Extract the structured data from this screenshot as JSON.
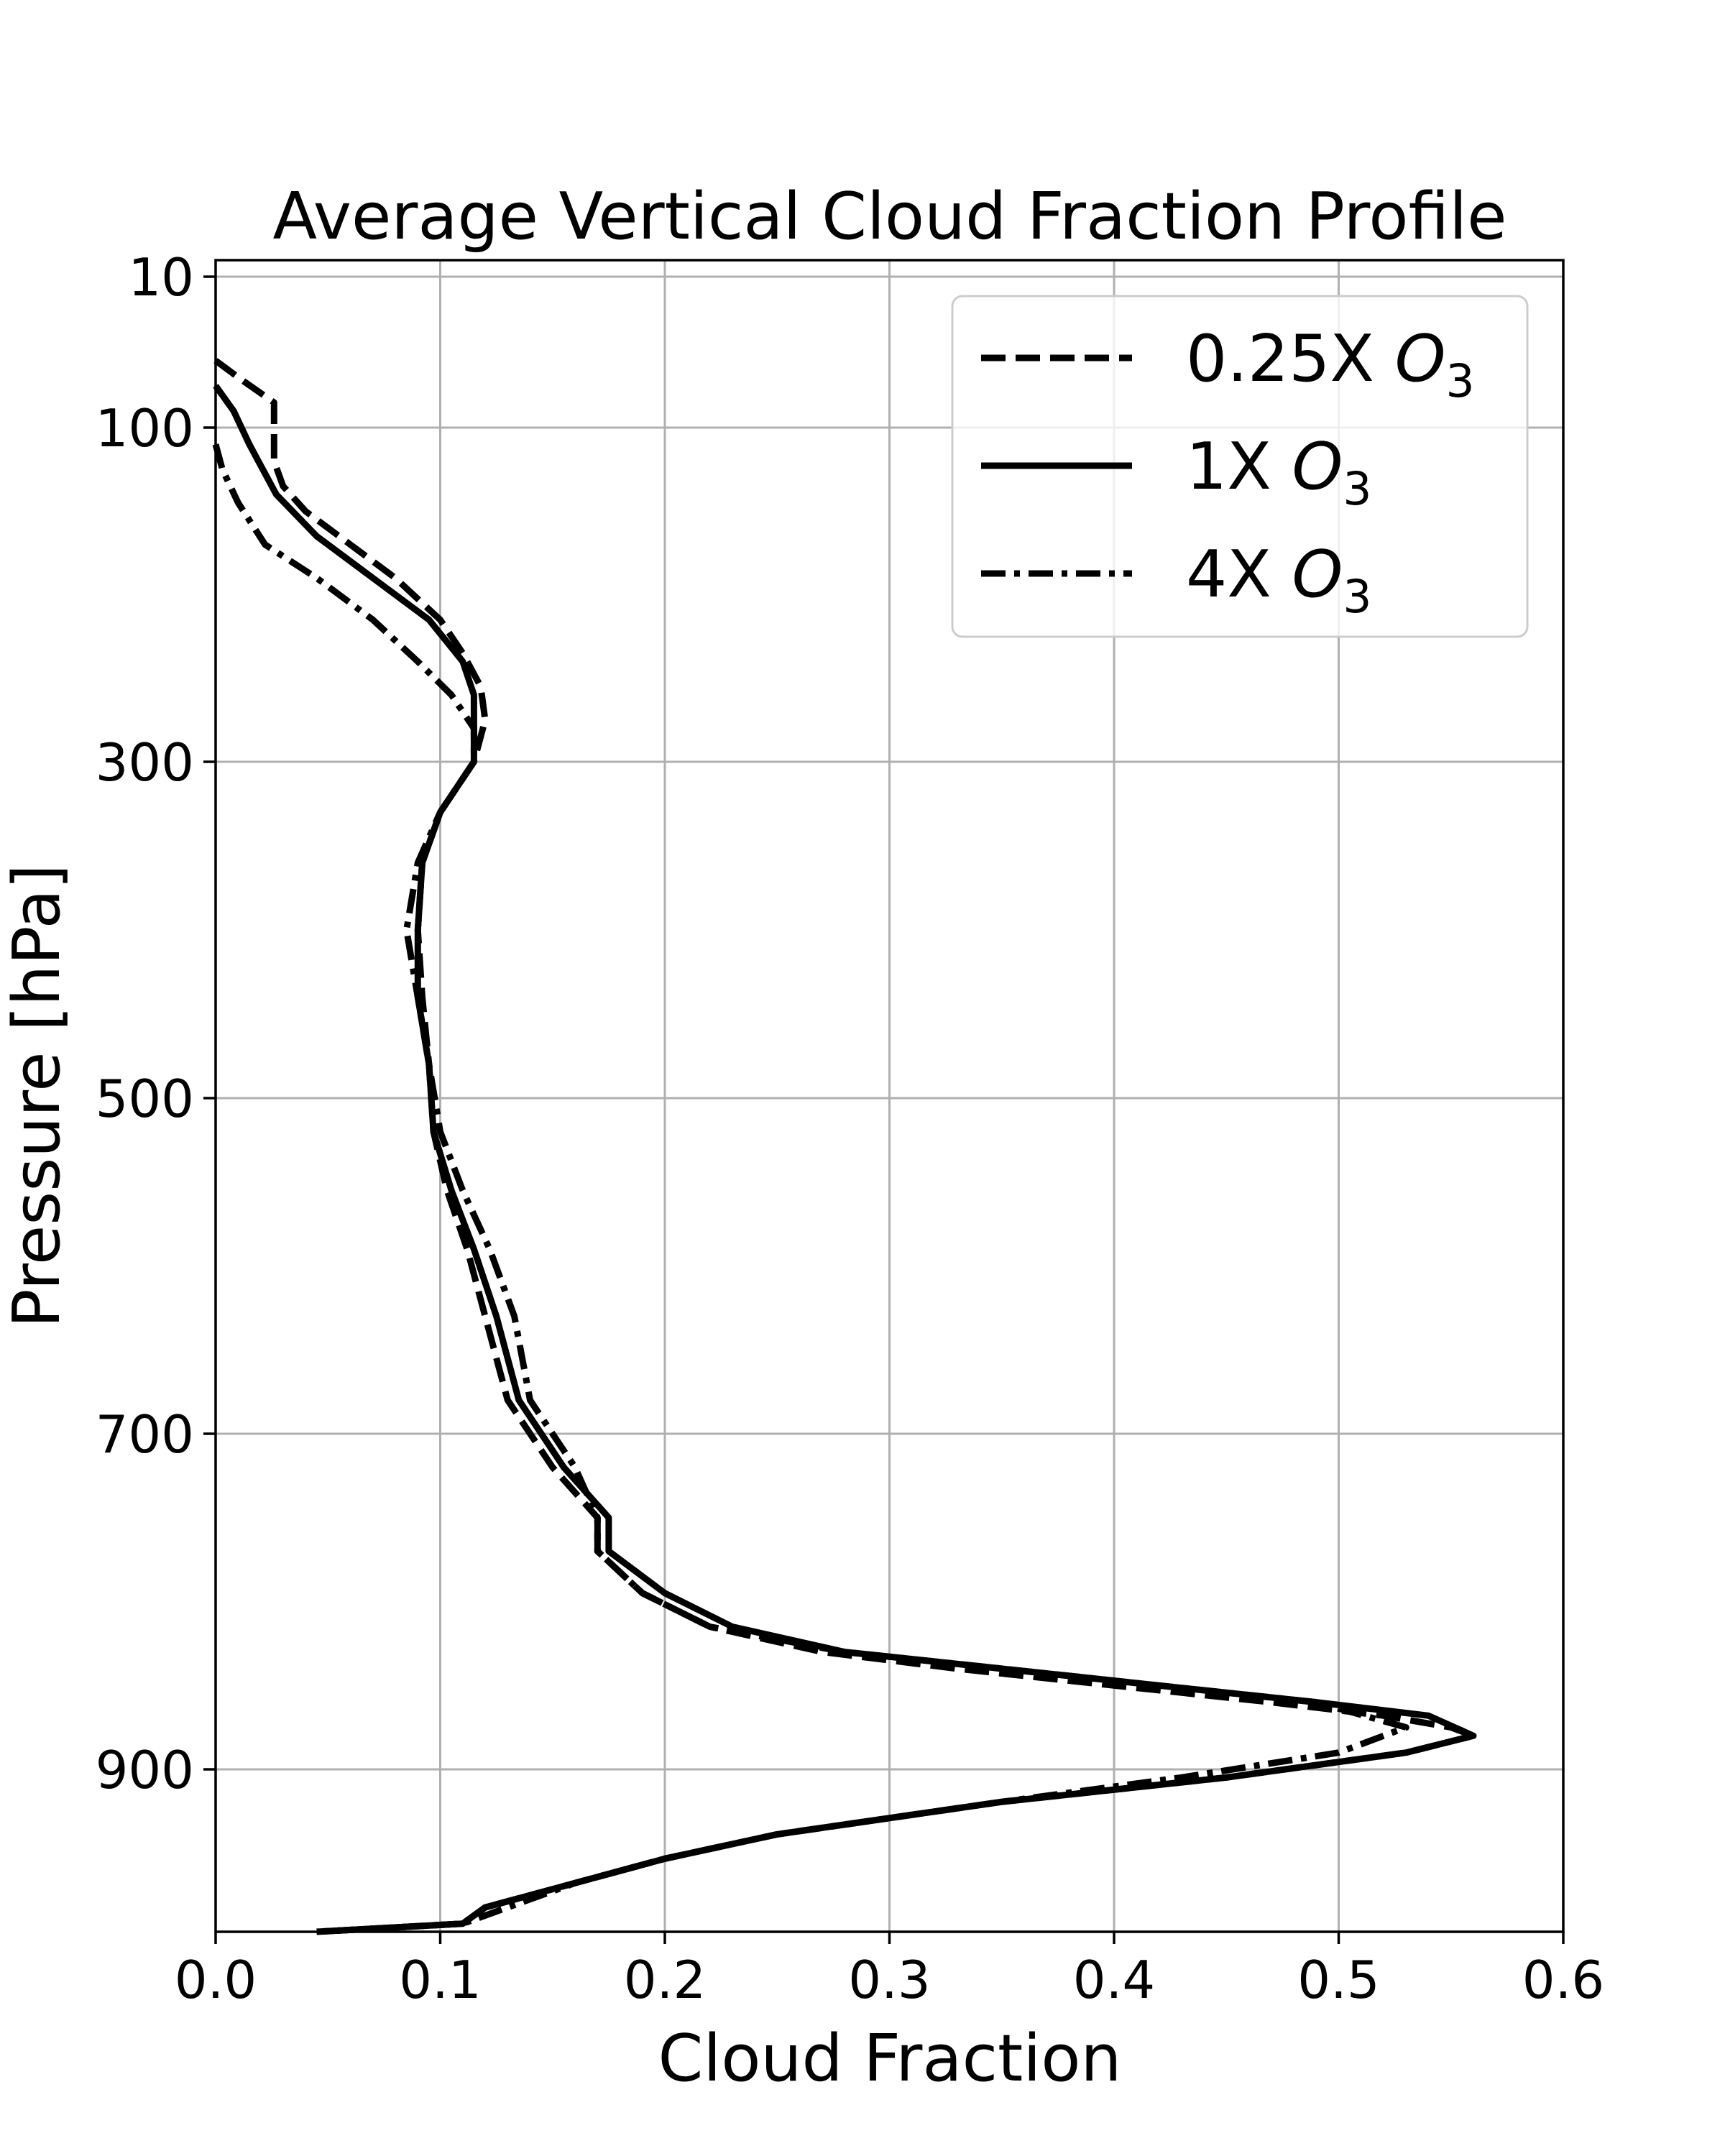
{
  "chart_data": {
    "type": "line",
    "title": "Average Vertical Cloud Fraction Profile",
    "xlabel": "Cloud Fraction",
    "ylabel": "Pressure [hPa]",
    "xlim": [
      0.0,
      0.6
    ],
    "ylim": [
      1000,
      10
    ],
    "x_ticks": [
      "0.0",
      "0.1",
      "0.2",
      "0.3",
      "0.4",
      "0.5",
      "0.6"
    ],
    "y_ticks": [
      "10",
      "100",
      "300",
      "500",
      "700",
      "900"
    ],
    "grid": true,
    "legend_position": "top-right",
    "series": [
      {
        "name": "0.25X",
        "name_italic": "O",
        "name_sub": "3",
        "dash": "dashed",
        "points": [
          [
            0.0,
            60
          ],
          [
            0.01,
            70
          ],
          [
            0.026,
            85
          ],
          [
            0.026,
            100
          ],
          [
            0.026,
            120
          ],
          [
            0.03,
            135
          ],
          [
            0.04,
            150
          ],
          [
            0.06,
            170
          ],
          [
            0.08,
            190
          ],
          [
            0.1,
            215
          ],
          [
            0.11,
            235
          ],
          [
            0.118,
            255
          ],
          [
            0.12,
            275
          ],
          [
            0.115,
            300
          ],
          [
            0.1,
            330
          ],
          [
            0.092,
            360
          ],
          [
            0.09,
            400
          ],
          [
            0.092,
            440
          ],
          [
            0.095,
            480
          ],
          [
            0.097,
            520
          ],
          [
            0.103,
            555
          ],
          [
            0.112,
            590
          ],
          [
            0.12,
            630
          ],
          [
            0.13,
            680
          ],
          [
            0.15,
            720
          ],
          [
            0.17,
            750
          ],
          [
            0.17,
            770
          ],
          [
            0.19,
            795
          ],
          [
            0.22,
            815
          ],
          [
            0.27,
            830
          ],
          [
            0.33,
            840
          ],
          [
            0.4,
            850
          ],
          [
            0.47,
            860
          ],
          [
            0.52,
            868
          ],
          [
            0.55,
            875
          ],
          [
            0.56,
            880
          ],
          [
            0.53,
            890
          ],
          [
            0.45,
            905
          ],
          [
            0.35,
            920
          ],
          [
            0.25,
            940
          ],
          [
            0.2,
            955
          ],
          [
            0.16,
            970
          ],
          [
            0.12,
            985
          ],
          [
            0.11,
            995
          ],
          [
            0.045,
            1000
          ]
        ]
      },
      {
        "name": "1X",
        "name_italic": "O",
        "name_sub": "3",
        "dash": "solid",
        "points": [
          [
            0.0,
            75
          ],
          [
            0.008,
            90
          ],
          [
            0.015,
            110
          ],
          [
            0.027,
            140
          ],
          [
            0.045,
            165
          ],
          [
            0.07,
            190
          ],
          [
            0.095,
            215
          ],
          [
            0.11,
            240
          ],
          [
            0.115,
            260
          ],
          [
            0.115,
            280
          ],
          [
            0.115,
            300
          ],
          [
            0.1,
            330
          ],
          [
            0.092,
            360
          ],
          [
            0.09,
            400
          ],
          [
            0.09,
            440
          ],
          [
            0.095,
            480
          ],
          [
            0.097,
            520
          ],
          [
            0.105,
            555
          ],
          [
            0.115,
            590
          ],
          [
            0.125,
            630
          ],
          [
            0.135,
            680
          ],
          [
            0.155,
            720
          ],
          [
            0.175,
            750
          ],
          [
            0.175,
            770
          ],
          [
            0.2,
            795
          ],
          [
            0.23,
            815
          ],
          [
            0.28,
            830
          ],
          [
            0.35,
            840
          ],
          [
            0.42,
            850
          ],
          [
            0.49,
            860
          ],
          [
            0.54,
            868
          ],
          [
            0.56,
            880
          ],
          [
            0.53,
            890
          ],
          [
            0.45,
            905
          ],
          [
            0.35,
            920
          ],
          [
            0.25,
            940
          ],
          [
            0.2,
            955
          ],
          [
            0.16,
            970
          ],
          [
            0.12,
            985
          ],
          [
            0.11,
            995
          ],
          [
            0.045,
            1000
          ]
        ]
      },
      {
        "name": "4X",
        "name_italic": "O",
        "name_sub": "3",
        "dash": "dashdot",
        "points": [
          [
            0.0,
            110
          ],
          [
            0.003,
            125
          ],
          [
            0.01,
            145
          ],
          [
            0.022,
            170
          ],
          [
            0.045,
            190
          ],
          [
            0.07,
            215
          ],
          [
            0.09,
            240
          ],
          [
            0.105,
            260
          ],
          [
            0.115,
            280
          ],
          [
            0.115,
            300
          ],
          [
            0.1,
            330
          ],
          [
            0.09,
            360
          ],
          [
            0.085,
            400
          ],
          [
            0.09,
            440
          ],
          [
            0.095,
            480
          ],
          [
            0.1,
            520
          ],
          [
            0.11,
            555
          ],
          [
            0.122,
            590
          ],
          [
            0.133,
            630
          ],
          [
            0.14,
            680
          ],
          [
            0.16,
            720
          ],
          [
            0.17,
            750
          ],
          [
            0.17,
            770
          ],
          [
            0.19,
            795
          ],
          [
            0.22,
            815
          ],
          [
            0.28,
            830
          ],
          [
            0.35,
            840
          ],
          [
            0.42,
            850
          ],
          [
            0.49,
            860
          ],
          [
            0.53,
            875
          ],
          [
            0.5,
            890
          ],
          [
            0.43,
            905
          ],
          [
            0.35,
            920
          ],
          [
            0.25,
            940
          ],
          [
            0.2,
            955
          ],
          [
            0.16,
            970
          ],
          [
            0.13,
            985
          ],
          [
            0.11,
            995
          ],
          [
            0.045,
            1000
          ]
        ]
      }
    ]
  }
}
